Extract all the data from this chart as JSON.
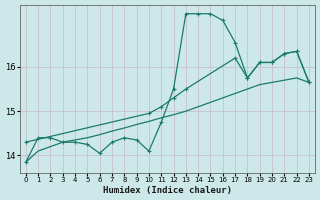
{
  "xlabel": "Humidex (Indice chaleur)",
  "bg_color": "#cde8e8",
  "grid_color": "#b8d8d8",
  "line_color": "#1a7a6e",
  "xlim": [
    -0.5,
    23.5
  ],
  "ylim": [
    13.6,
    17.4
  ],
  "xticks": [
    0,
    1,
    2,
    3,
    4,
    5,
    6,
    7,
    8,
    9,
    10,
    11,
    12,
    13,
    14,
    15,
    16,
    17,
    18,
    19,
    20,
    21,
    22,
    23
  ],
  "yticks": [
    14,
    15,
    16
  ],
  "series": [
    {
      "x": [
        0,
        1,
        2,
        3,
        4,
        5,
        6,
        7,
        8,
        9,
        10,
        11,
        12,
        13,
        14,
        15,
        16,
        17,
        18,
        19,
        20,
        21,
        22,
        23
      ],
      "y": [
        13.85,
        14.4,
        14.4,
        14.3,
        14.3,
        14.25,
        14.05,
        14.3,
        14.4,
        14.35,
        14.1,
        14.75,
        15.5,
        17.2,
        17.2,
        17.2,
        17.05,
        16.55,
        15.75,
        16.1,
        16.1,
        16.3,
        16.35,
        15.65
      ],
      "marker": true
    },
    {
      "x": [
        0,
        10,
        11,
        12,
        13,
        17,
        18,
        19,
        20,
        21,
        22,
        23
      ],
      "y": [
        14.3,
        14.95,
        15.1,
        15.3,
        15.5,
        16.2,
        15.75,
        16.1,
        16.1,
        16.3,
        16.35,
        15.65
      ],
      "marker": true
    },
    {
      "x": [
        0,
        1,
        2,
        3,
        4,
        5,
        6,
        7,
        8,
        9,
        10,
        11,
        12,
        13,
        14,
        15,
        16,
        17,
        18,
        19,
        20,
        21,
        22,
        23
      ],
      "y": [
        13.85,
        14.1,
        14.2,
        14.3,
        14.35,
        14.4,
        14.47,
        14.55,
        14.62,
        14.7,
        14.77,
        14.85,
        14.92,
        15.0,
        15.1,
        15.2,
        15.3,
        15.4,
        15.5,
        15.6,
        15.65,
        15.7,
        15.75,
        15.65
      ],
      "marker": false
    }
  ]
}
